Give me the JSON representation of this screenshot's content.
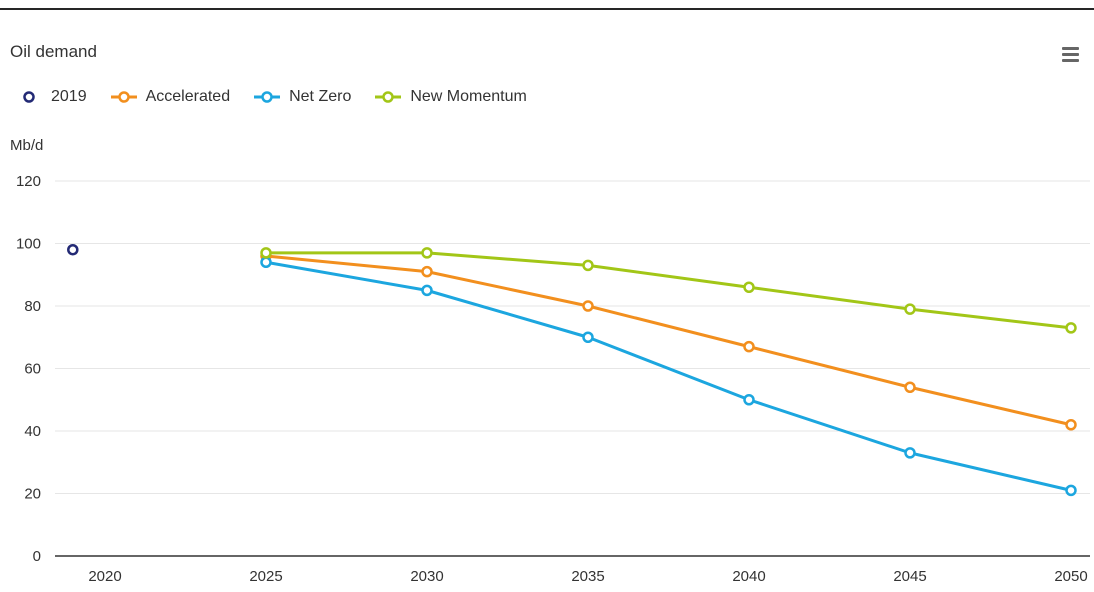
{
  "header": {
    "title": "Oil demand"
  },
  "axis": {
    "unit_label": "Mb/d"
  },
  "chart_data": {
    "type": "line",
    "title": "Oil demand",
    "xlabel": "",
    "ylabel": "Mb/d",
    "ylim": [
      0,
      120
    ],
    "yticks": [
      0,
      20,
      40,
      60,
      80,
      100,
      120
    ],
    "xticks": [
      2020,
      2025,
      2030,
      2035,
      2040,
      2045,
      2050
    ],
    "grid": true,
    "legend_position": "top",
    "series": [
      {
        "name": "2019",
        "color": "#232a75",
        "markers_only": true,
        "x": [
          2019
        ],
        "values": [
          98
        ]
      },
      {
        "name": "Accelerated",
        "color": "#f28f1e",
        "x": [
          2025,
          2030,
          2035,
          2040,
          2045,
          2050
        ],
        "values": [
          96,
          91,
          80,
          67,
          54,
          42
        ]
      },
      {
        "name": "Net Zero",
        "color": "#1ca6df",
        "x": [
          2025,
          2030,
          2035,
          2040,
          2045,
          2050
        ],
        "values": [
          94,
          85,
          70,
          50,
          33,
          21
        ]
      },
      {
        "name": "New Momentum",
        "color": "#a2c617",
        "x": [
          2025,
          2030,
          2035,
          2040,
          2045,
          2050
        ],
        "values": [
          97,
          97,
          93,
          86,
          79,
          73
        ]
      }
    ]
  }
}
